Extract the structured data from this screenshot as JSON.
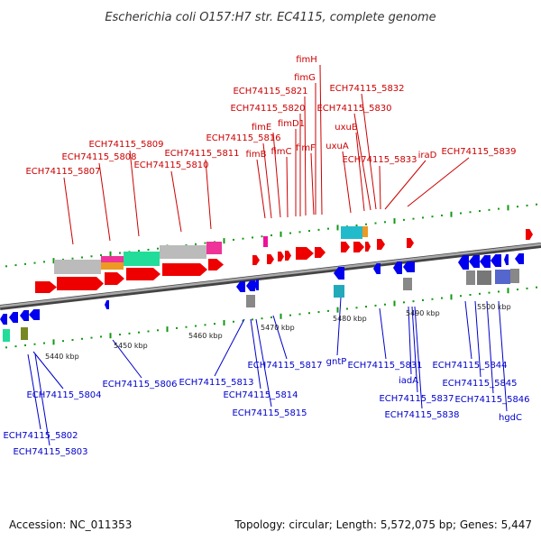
{
  "title": "Escherichia coli O157:H7 str. EC4115, complete genome",
  "footer": {
    "accession": "Accession: NC_011353",
    "topology": "Topology: circular; Length: 5,572,075 bp; Genes: 5,447"
  },
  "colors": {
    "forward": "#ee0000",
    "reverse": "#0000ee",
    "forward_label": "#cc0000",
    "reverse_label": "#0000cc",
    "backbone": "#888888",
    "ticks": "#119911"
  },
  "scale": [
    "5440 kbp",
    "5450 kbp",
    "5460 kbp",
    "5470 kbp",
    "5480 kbp",
    "5490 kbp",
    "5500 kbp"
  ],
  "forward_labels": [
    "fimH",
    "fimG",
    "ECH74115_5821",
    "ECH74115_5832",
    "ECH74115_5820",
    "ECH74115_5830",
    "fimD1",
    "fimE",
    "uxuB",
    "ECH74115_5816",
    "fimB",
    "fimC",
    "fimF",
    "uxuA",
    "ECH74115_5809",
    "ECH74115_5808",
    "ECH74115_5811",
    "ECH74115_5810",
    "ECH74115_5807",
    "ECH74115_5833",
    "iraD",
    "ECH74115_5839"
  ],
  "reverse_labels": [
    "gntP",
    "ECH74115_5831",
    "iadA",
    "ECH74115_5837",
    "ECH74115_5838",
    "ECH74115_5844",
    "ECH74115_5845",
    "ECH74115_5846",
    "hgdC",
    "ECH74115_5817",
    "ECH74115_5813",
    "ECH74115_5814",
    "ECH74115_5815",
    "ECH74115_5806",
    "ECH74115_5804",
    "ECH74115_5802",
    "ECH74115_5803"
  ]
}
